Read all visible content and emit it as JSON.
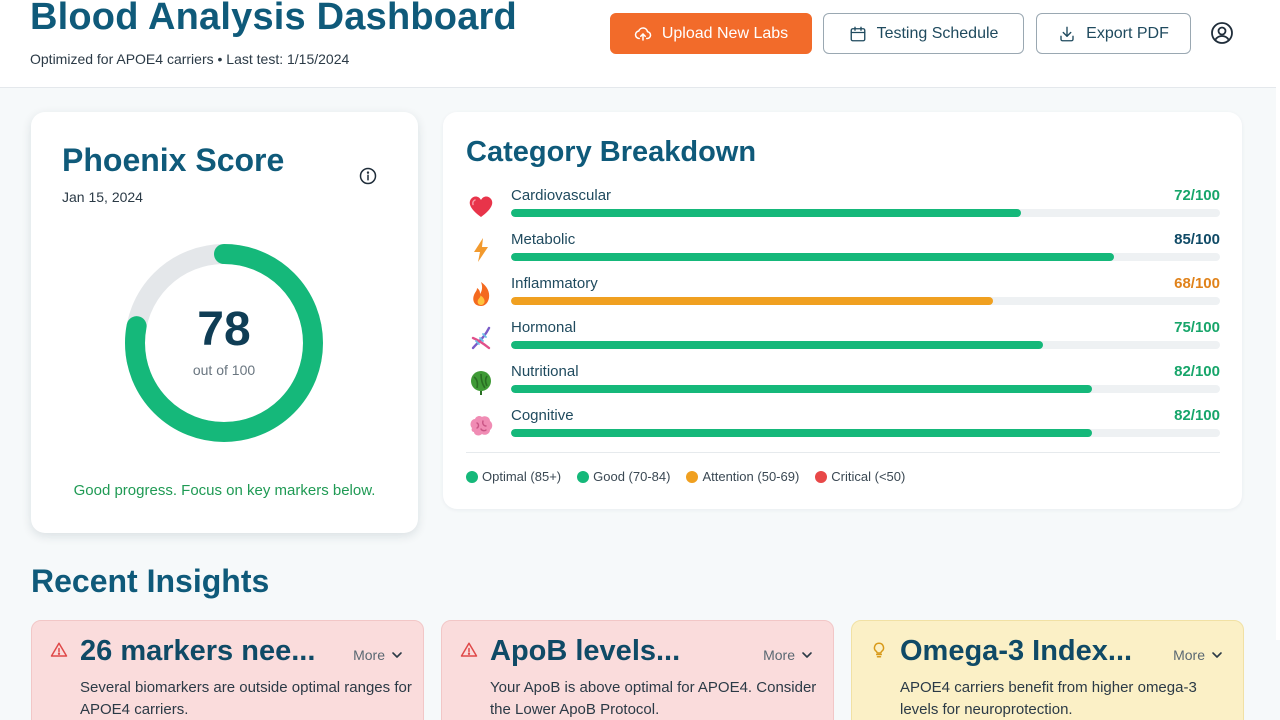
{
  "header": {
    "title": "Blood Analysis Dashboard",
    "subtitle": "Optimized for APOE4 carriers • Last test: 1/15/2024",
    "upload_label": "Upload New Labs",
    "schedule_label": "Testing Schedule",
    "export_label": "Export PDF"
  },
  "score": {
    "title": "Phoenix Score",
    "date": "Jan 15, 2024",
    "value": "78",
    "value_num": 78,
    "max": 100,
    "out_of": "out of 100",
    "note": "Good progress. Focus on key markers below."
  },
  "categories": {
    "title": "Category Breakdown",
    "items": [
      {
        "name": "Cardiovascular",
        "score_label": "72/100",
        "value": 72,
        "color": "#15b87a",
        "icon": "heart-icon"
      },
      {
        "name": "Metabolic",
        "score_label": "85/100",
        "value": 85,
        "color": "#15b87a",
        "icon": "lightning-icon"
      },
      {
        "name": "Inflammatory",
        "score_label": "68/100",
        "value": 68,
        "color": "#f0a020",
        "icon": "flame-icon"
      },
      {
        "name": "Hormonal",
        "score_label": "75/100",
        "value": 75,
        "color": "#15b87a",
        "icon": "dna-icon"
      },
      {
        "name": "Nutritional",
        "score_label": "82/100",
        "value": 82,
        "color": "#15b87a",
        "icon": "leaf-icon"
      },
      {
        "name": "Cognitive",
        "score_label": "82/100",
        "value": 82,
        "color": "#15b87a",
        "icon": "brain-icon"
      }
    ],
    "legend": [
      {
        "label": "Optimal (85+)",
        "color": "#15b87a"
      },
      {
        "label": "Good (70-84)",
        "color": "#15b87a"
      },
      {
        "label": "Attention (50-69)",
        "color": "#f0a020"
      },
      {
        "label": "Critical (<50)",
        "color": "#e84848"
      }
    ]
  },
  "insights": {
    "title": "Recent Insights",
    "more_label": "More",
    "items": [
      {
        "title": "26 markers nee...",
        "body": "Several biomarkers are outside optimal ranges for APOE4 carriers.",
        "tone": "red",
        "icon": "warning-icon"
      },
      {
        "title": "ApoB levels...",
        "body": "Your ApoB is above optimal for APOE4. Consider the Lower ApoB Protocol.",
        "tone": "red",
        "icon": "warning-icon"
      },
      {
        "title": "Omega-3 Index...",
        "body": "APOE4 carriers benefit from higher omega-3 levels for neuroprotection.",
        "tone": "yellow",
        "icon": "lightbulb-icon"
      }
    ]
  },
  "colors": {
    "brand": "#0f5a7a",
    "accent": "#f26b2a",
    "good": "#15b87a",
    "attention": "#f0a020",
    "ring_track": "#e4e7ea"
  }
}
